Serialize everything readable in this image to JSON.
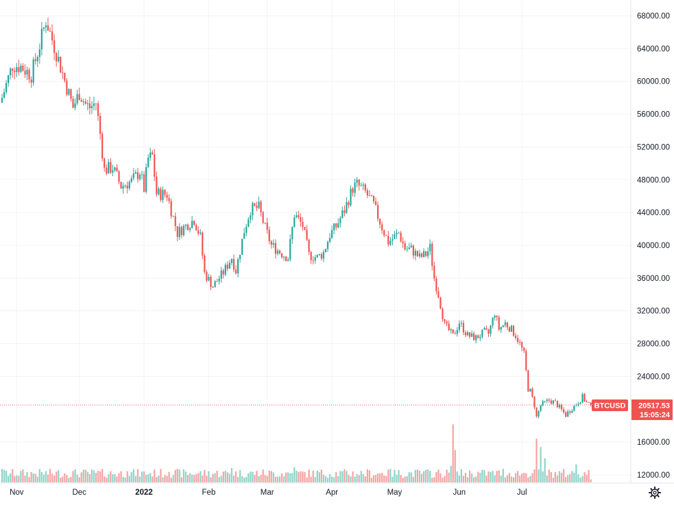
{
  "chart_data": {
    "type": "candlestick",
    "symbol": "BTCUSD",
    "last_price": "20517.53",
    "countdown": "15:05:24",
    "y_ticks": [
      "68000.00",
      "64000.00",
      "60000.00",
      "56000.00",
      "52000.00",
      "48000.00",
      "44000.00",
      "40000.00",
      "36000.00",
      "32000.00",
      "28000.00",
      "24000.00",
      "16000.00",
      "12000.00"
    ],
    "x_ticks": [
      {
        "label": "Nov",
        "bold": false
      },
      {
        "label": "Dec",
        "bold": false
      },
      {
        "label": "2022",
        "bold": true
      },
      {
        "label": "Feb",
        "bold": false
      },
      {
        "label": "Mar",
        "bold": false
      },
      {
        "label": "Apr",
        "bold": false
      },
      {
        "label": "May",
        "bold": false
      },
      {
        "label": "Jun",
        "bold": false
      },
      {
        "label": "Jul",
        "bold": false
      }
    ],
    "ylim": [
      11000,
      69500
    ],
    "grid": true,
    "colors": {
      "up": "#26a69a",
      "down": "#ef5350",
      "up_vol": "#8fd3c8",
      "down_vol": "#f5a3a1",
      "grid": "#f0f3fa",
      "axis": "#e0e3eb",
      "text": "#131722"
    },
    "start_date": "2021-10-25",
    "closes": [
      [
        0,
        58000
      ],
      [
        5,
        62000
      ],
      [
        9,
        61800
      ],
      [
        14,
        60800
      ],
      [
        18,
        64400
      ],
      [
        21,
        67500
      ],
      [
        26,
        63500
      ],
      [
        30,
        60100
      ],
      [
        34,
        56800
      ],
      [
        37,
        58600
      ],
      [
        40,
        57200
      ],
      [
        42,
        56800
      ],
      [
        45,
        57400
      ],
      [
        47,
        53600
      ],
      [
        49,
        49200
      ],
      [
        53,
        49500
      ],
      [
        57,
        47200
      ],
      [
        62,
        47800
      ],
      [
        66,
        49000
      ],
      [
        68,
        46900
      ],
      [
        70,
        50600
      ],
      [
        72,
        50900
      ],
      [
        74,
        46300
      ],
      [
        79,
        46200
      ],
      [
        84,
        41500
      ],
      [
        89,
        42600
      ],
      [
        92,
        43100
      ],
      [
        95,
        41000
      ],
      [
        97,
        36600
      ],
      [
        101,
        35000
      ],
      [
        106,
        36700
      ],
      [
        110,
        38500
      ],
      [
        112,
        36900
      ],
      [
        116,
        41800
      ],
      [
        119,
        44400
      ],
      [
        123,
        44600
      ],
      [
        126,
        42100
      ],
      [
        129,
        40000
      ],
      [
        134,
        39000
      ],
      [
        137,
        38500
      ],
      [
        140,
        43800
      ],
      [
        144,
        42400
      ],
      [
        147,
        38800
      ],
      [
        151,
        38500
      ],
      [
        154,
        39100
      ],
      [
        157,
        41300
      ],
      [
        160,
        42300
      ],
      [
        164,
        44300
      ],
      [
        168,
        47000
      ],
      [
        170,
        47400
      ],
      [
        174,
        46500
      ],
      [
        178,
        44900
      ],
      [
        182,
        42200
      ],
      [
        185,
        40400
      ],
      [
        187,
        40800
      ],
      [
        190,
        41500
      ],
      [
        193,
        39600
      ],
      [
        196,
        39500
      ],
      [
        200,
        38500
      ],
      [
        203,
        38900
      ],
      [
        205,
        39700
      ],
      [
        207,
        36000
      ],
      [
        209,
        34000
      ],
      [
        212,
        30300
      ],
      [
        216,
        28900
      ],
      [
        219,
        30600
      ],
      [
        223,
        29000
      ],
      [
        227,
        28700
      ],
      [
        231,
        29400
      ],
      [
        233,
        29200
      ],
      [
        236,
        31800
      ],
      [
        238,
        29800
      ],
      [
        241,
        30500
      ],
      [
        244,
        29700
      ],
      [
        246,
        29000
      ],
      [
        248,
        28000
      ],
      [
        250,
        26700
      ],
      [
        252,
        22500
      ],
      [
        253,
        22200
      ],
      [
        255,
        20500
      ],
      [
        256,
        19000
      ],
      [
        258,
        20500
      ],
      [
        262,
        21100
      ],
      [
        265,
        20800
      ],
      [
        268,
        19900
      ],
      [
        270,
        19300
      ],
      [
        272,
        19900
      ],
      [
        275,
        20600
      ],
      [
        278,
        21500
      ],
      [
        280,
        20800
      ],
      [
        282,
        20517
      ]
    ],
    "vol_peaks": [
      [
        0,
        1.8
      ],
      [
        60,
        1.5
      ],
      [
        80,
        1.4
      ],
      [
        110,
        1.9
      ],
      [
        140,
        2.0
      ],
      [
        185,
        1.7
      ],
      [
        215,
        2.2
      ],
      [
        216,
        7.7
      ],
      [
        217,
        4.3
      ],
      [
        240,
        1.8
      ],
      [
        256,
        5.8
      ],
      [
        258,
        4.7
      ],
      [
        260,
        3.2
      ],
      [
        275,
        2.4
      ],
      [
        282,
        0.4
      ]
    ]
  }
}
